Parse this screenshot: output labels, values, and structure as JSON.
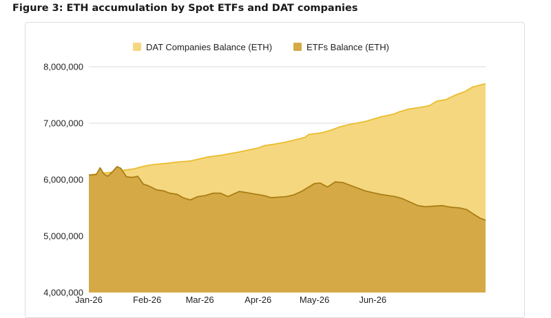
{
  "figure_title": "Figure 3: ETH accumulation by Spot ETFs and DAT companies",
  "colors": {
    "dat_fill": "#f5d77f",
    "dat_line": "#eabd2c",
    "etf_fill": "#d5aa46",
    "etf_line": "#a97d15",
    "grid": "#d9d9d9"
  },
  "chart_data": {
    "type": "area",
    "title": "Figure 3: ETH accumulation by Spot ETFs and DAT companies",
    "xlabel": "",
    "ylabel": "",
    "ylim": [
      4000000,
      8000000
    ],
    "yticks": [
      4000000,
      5000000,
      6000000,
      7000000,
      8000000
    ],
    "ytick_labels": [
      "4,000,000",
      "5,000,000",
      "6,000,000",
      "7,000,000",
      "8,000,000"
    ],
    "xlim": [
      "2026-01-01",
      "2026-07-31"
    ],
    "xtick_labels": [
      "Jan-26",
      "Feb-26",
      "Mar-26",
      "Apr-26",
      "May-26",
      "Jun-26"
    ],
    "xtick_dates": [
      "2026-01-01",
      "2026-02-01",
      "2026-03-01",
      "2026-04-01",
      "2026-05-01",
      "2026-06-01"
    ],
    "legend_position": "top",
    "grid": true,
    "series": [
      {
        "name": "DAT Companies Balance (ETH)",
        "x": [
          "2026-01-01",
          "2026-01-05",
          "2026-01-10",
          "2026-01-15",
          "2026-01-20",
          "2026-01-25",
          "2026-01-28",
          "2026-02-01",
          "2026-02-05",
          "2026-02-12",
          "2026-02-16",
          "2026-02-24",
          "2026-03-01",
          "2026-03-05",
          "2026-03-12",
          "2026-03-15",
          "2026-03-22",
          "2026-03-26",
          "2026-04-01",
          "2026-04-04",
          "2026-04-10",
          "2026-04-15",
          "2026-04-20",
          "2026-04-26",
          "2026-04-28",
          "2026-05-05",
          "2026-05-10",
          "2026-05-15",
          "2026-05-20",
          "2026-05-28",
          "2026-06-01",
          "2026-06-05",
          "2026-06-12",
          "2026-06-15",
          "2026-06-20",
          "2026-06-26",
          "2026-07-01",
          "2026-07-05",
          "2026-07-10",
          "2026-07-15",
          "2026-07-20",
          "2026-07-24",
          "2026-07-31"
        ],
        "values": [
          6080000,
          6100000,
          6120000,
          6140000,
          6170000,
          6190000,
          6220000,
          6250000,
          6270000,
          6290000,
          6310000,
          6330000,
          6370000,
          6400000,
          6430000,
          6450000,
          6490000,
          6520000,
          6560000,
          6600000,
          6630000,
          6660000,
          6700000,
          6750000,
          6800000,
          6830000,
          6880000,
          6940000,
          6980000,
          7030000,
          7070000,
          7110000,
          7160000,
          7200000,
          7250000,
          7280000,
          7310000,
          7390000,
          7420000,
          7500000,
          7560000,
          7640000,
          7700000
        ]
      },
      {
        "name": "ETFs Balance (ETH)",
        "x": [
          "2026-01-01",
          "2026-01-05",
          "2026-01-07",
          "2026-01-09",
          "2026-01-11",
          "2026-01-13",
          "2026-01-16",
          "2026-01-18",
          "2026-01-21",
          "2026-01-24",
          "2026-01-27",
          "2026-01-30",
          "2026-02-01",
          "2026-02-03",
          "2026-02-06",
          "2026-02-10",
          "2026-02-13",
          "2026-02-17",
          "2026-02-20",
          "2026-02-24",
          "2026-02-28",
          "2026-03-04",
          "2026-03-08",
          "2026-03-12",
          "2026-03-16",
          "2026-03-18",
          "2026-03-22",
          "2026-03-26",
          "2026-03-31",
          "2026-04-04",
          "2026-04-08",
          "2026-04-12",
          "2026-04-16",
          "2026-04-20",
          "2026-04-24",
          "2026-04-28",
          "2026-05-01",
          "2026-05-04",
          "2026-05-08",
          "2026-05-12",
          "2026-05-16",
          "2026-05-20",
          "2026-05-24",
          "2026-05-28",
          "2026-06-01",
          "2026-06-05",
          "2026-06-09",
          "2026-06-13",
          "2026-06-17",
          "2026-06-21",
          "2026-06-25",
          "2026-06-29",
          "2026-07-03",
          "2026-07-08",
          "2026-07-13",
          "2026-07-17",
          "2026-07-21",
          "2026-07-25",
          "2026-07-28",
          "2026-07-31"
        ],
        "values": [
          6080000,
          6090000,
          6210000,
          6100000,
          6060000,
          6120000,
          6230000,
          6200000,
          6050000,
          6040000,
          6060000,
          5920000,
          5900000,
          5870000,
          5820000,
          5800000,
          5760000,
          5740000,
          5680000,
          5640000,
          5700000,
          5720000,
          5760000,
          5760000,
          5700000,
          5730000,
          5790000,
          5770000,
          5740000,
          5720000,
          5680000,
          5690000,
          5700000,
          5730000,
          5790000,
          5870000,
          5930000,
          5940000,
          5870000,
          5960000,
          5950000,
          5900000,
          5850000,
          5800000,
          5770000,
          5740000,
          5720000,
          5700000,
          5660000,
          5600000,
          5540000,
          5520000,
          5530000,
          5540000,
          5510000,
          5500000,
          5470000,
          5380000,
          5320000,
          5280000
        ]
      }
    ]
  }
}
